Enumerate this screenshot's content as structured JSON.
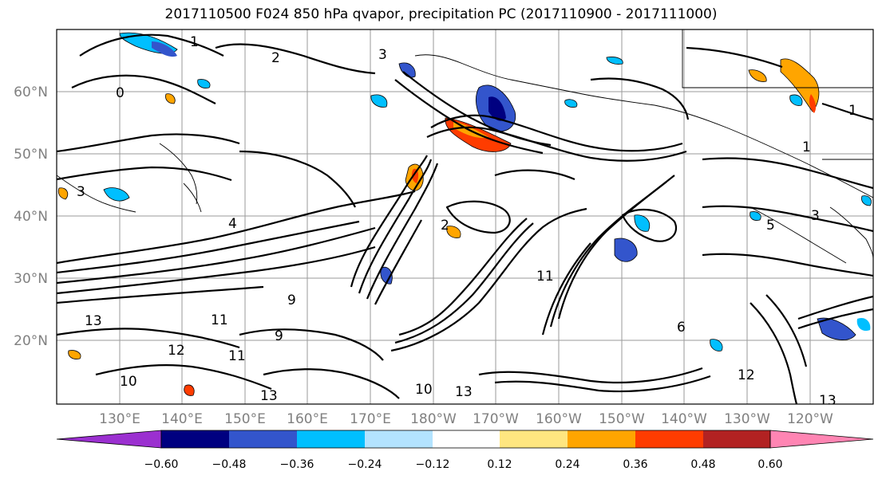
{
  "title": "2017110500 F024 850 hPa qvapor, precipitation PC (2017110900 - 2017111000)",
  "map": {
    "lat_ticks": [
      "60°N",
      "50°N",
      "40°N",
      "30°N",
      "20°N"
    ],
    "lon_ticks": [
      "130°E",
      "140°E",
      "150°E",
      "160°E",
      "170°E",
      "180°W",
      "170°W",
      "160°W",
      "150°W",
      "140°W",
      "130°W",
      "120°W"
    ],
    "contour_labels": [
      "1",
      "2",
      "3",
      "0",
      "3",
      "1",
      "1",
      "3",
      "4",
      "2",
      "5",
      "9",
      "11",
      "13",
      "12",
      "11",
      "9",
      "13",
      "13",
      "10",
      "6",
      "12",
      "13",
      "11",
      "10"
    ]
  },
  "colorbar": {
    "tick_labels": [
      "−0.60",
      "−0.48",
      "−0.36",
      "−0.24",
      "−0.12",
      "0.12",
      "0.24",
      "0.36",
      "0.48",
      "0.60"
    ],
    "colors": [
      "#9b30d0",
      "#000080",
      "#3355cc",
      "#00bfff",
      "#b3e3ff",
      "#ffffff",
      "#ffe680",
      "#ffa500",
      "#ff3c00",
      "#b22222",
      "#ff85b3"
    ]
  }
}
